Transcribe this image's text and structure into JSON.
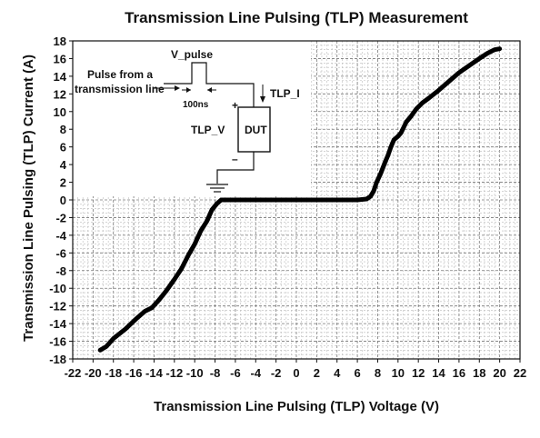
{
  "chart_data": {
    "type": "line",
    "title": "Transmission Line Pulsing (TLP) Measurement",
    "xlabel": "Transmission Line Pulsing (TLP) Voltage (V)",
    "ylabel": "Transmission Line Pulsing (TLP) Current (A)",
    "xlim": [
      -22,
      22
    ],
    "ylim": [
      -18,
      18
    ],
    "x_ticks": [
      "-22",
      "-20",
      "-18",
      "-16",
      "-14",
      "-12",
      "-10",
      "-8",
      "-6",
      "-4",
      "-2",
      "0",
      "2",
      "4",
      "6",
      "8",
      "10",
      "12",
      "14",
      "16",
      "18",
      "20",
      "22"
    ],
    "y_ticks": [
      "18",
      "16",
      "14",
      "12",
      "10",
      "8",
      "6",
      "4",
      "2",
      "0",
      "-2",
      "-4",
      "-6",
      "-8",
      "-10",
      "-12",
      "-14",
      "-16",
      "-18"
    ],
    "grid": true,
    "series": [
      {
        "x": [
          -19.3,
          -18.7,
          -18.0,
          -16.8,
          -15.8,
          -14.9,
          -14.2,
          -13.5,
          -12.8,
          -12.0,
          -11.3,
          -10.6,
          -10.0,
          -9.4,
          -8.8,
          -8.3,
          -7.8,
          -7.4,
          -7.0,
          -6.0,
          -4.0,
          -2.0,
          0.0,
          2.0,
          4.0,
          6.0,
          6.9,
          7.3,
          7.6,
          7.9,
          8.3,
          8.7,
          9.0,
          9.3,
          9.6,
          10.0,
          10.3,
          10.8,
          11.3,
          11.8,
          12.4,
          13.0,
          14.0,
          15.0,
          16.0,
          17.0,
          18.0,
          18.8,
          19.5,
          20.0
        ],
        "y": [
          -17.0,
          -16.6,
          -15.7,
          -14.6,
          -13.5,
          -12.6,
          -12.2,
          -11.3,
          -10.3,
          -9.0,
          -7.8,
          -6.2,
          -5.0,
          -3.5,
          -2.4,
          -1.1,
          -0.4,
          0.0,
          0.0,
          0.0,
          0.0,
          0.0,
          0.0,
          0.0,
          0.0,
          0.0,
          0.1,
          0.4,
          1.0,
          2.0,
          3.0,
          4.2,
          5.0,
          6.0,
          6.8,
          7.2,
          7.6,
          8.8,
          9.5,
          10.3,
          11.0,
          11.5,
          12.4,
          13.4,
          14.4,
          15.2,
          16.0,
          16.6,
          17.0,
          17.1
        ]
      }
    ],
    "inset": {
      "v_pulse": "V_pulse",
      "pulse_from": "Pulse from a",
      "transmission_line": "transmission line",
      "width": "100ns",
      "tlp_i": "TLP_I",
      "tlp_v": "TLP_V",
      "dut": "DUT",
      "plus": "+",
      "minus": "–"
    }
  }
}
